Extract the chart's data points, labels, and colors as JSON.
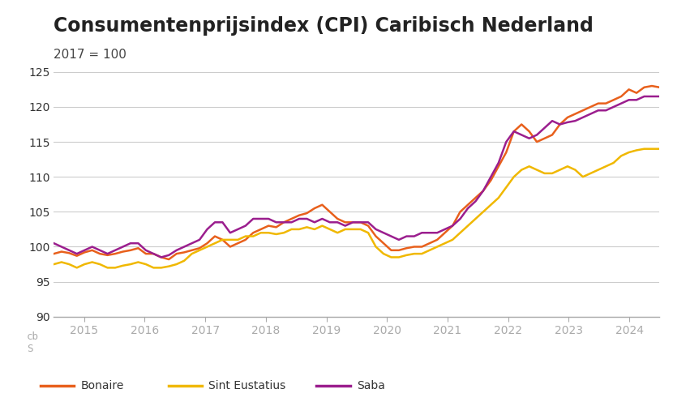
{
  "title": "Consumentenprijsindex (CPI) Caribisch Nederland",
  "subtitle": "2017 = 100",
  "title_fontsize": 17,
  "subtitle_fontsize": 11,
  "background_color": "#ffffff",
  "plot_bg_color": "#ffffff",
  "footer_bg_color": "#e8e8e8",
  "grid_color": "#cccccc",
  "ylim": [
    90,
    126
  ],
  "yticks": [
    90,
    95,
    100,
    105,
    110,
    115,
    120,
    125
  ],
  "series": {
    "bonaire": {
      "label": "Bonaire",
      "color": "#e8601c",
      "linewidth": 1.8,
      "data": [
        99.0,
        99.3,
        99.1,
        98.7,
        99.2,
        99.5,
        99.0,
        98.8,
        99.0,
        99.3,
        99.5,
        99.8,
        99.0,
        99.0,
        98.5,
        98.2,
        99.0,
        99.2,
        99.5,
        99.8,
        100.5,
        101.5,
        101.0,
        100.0,
        100.5,
        101.0,
        102.0,
        102.5,
        103.0,
        102.8,
        103.5,
        104.0,
        104.5,
        104.8,
        105.5,
        106.0,
        105.0,
        104.0,
        103.5,
        103.5,
        103.5,
        103.0,
        101.5,
        100.5,
        99.5,
        99.5,
        99.8,
        100.0,
        100.0,
        100.5,
        101.0,
        102.0,
        103.0,
        105.0,
        106.0,
        107.0,
        108.0,
        109.5,
        111.5,
        113.5,
        116.5,
        117.5,
        116.5,
        115.0,
        115.5,
        116.0,
        117.5,
        118.5,
        119.0,
        119.5,
        120.0,
        120.5,
        120.5,
        121.0,
        121.5,
        122.5,
        122.0,
        122.8,
        123.0,
        122.8
      ]
    },
    "sint_eustatius": {
      "label": "Sint Eustatius",
      "color": "#f0b800",
      "linewidth": 1.8,
      "data": [
        97.5,
        97.8,
        97.5,
        97.0,
        97.5,
        97.8,
        97.5,
        97.0,
        97.0,
        97.3,
        97.5,
        97.8,
        97.5,
        97.0,
        97.0,
        97.2,
        97.5,
        98.0,
        99.0,
        99.5,
        100.0,
        100.5,
        101.0,
        101.0,
        101.0,
        101.5,
        101.5,
        102.0,
        102.0,
        101.8,
        102.0,
        102.5,
        102.5,
        102.8,
        102.5,
        103.0,
        102.5,
        102.0,
        102.5,
        102.5,
        102.5,
        102.0,
        100.0,
        99.0,
        98.5,
        98.5,
        98.8,
        99.0,
        99.0,
        99.5,
        100.0,
        100.5,
        101.0,
        102.0,
        103.0,
        104.0,
        105.0,
        106.0,
        107.0,
        108.5,
        110.0,
        111.0,
        111.5,
        111.0,
        110.5,
        110.5,
        111.0,
        111.5,
        111.0,
        110.0,
        110.5,
        111.0,
        111.5,
        112.0,
        113.0,
        113.5,
        113.8,
        114.0,
        114.0,
        114.0
      ]
    },
    "saba": {
      "label": "Saba",
      "color": "#9b1e8e",
      "linewidth": 1.8,
      "data": [
        100.5,
        100.0,
        99.5,
        99.0,
        99.5,
        100.0,
        99.5,
        99.0,
        99.5,
        100.0,
        100.5,
        100.5,
        99.5,
        99.0,
        98.5,
        98.8,
        99.5,
        100.0,
        100.5,
        101.0,
        102.5,
        103.5,
        103.5,
        102.0,
        102.5,
        103.0,
        104.0,
        104.0,
        104.0,
        103.5,
        103.5,
        103.5,
        104.0,
        104.0,
        103.5,
        104.0,
        103.5,
        103.5,
        103.0,
        103.5,
        103.5,
        103.5,
        102.5,
        102.0,
        101.5,
        101.0,
        101.5,
        101.5,
        102.0,
        102.0,
        102.0,
        102.5,
        103.0,
        104.0,
        105.5,
        106.5,
        108.0,
        110.0,
        112.0,
        115.0,
        116.5,
        116.0,
        115.5,
        116.0,
        117.0,
        118.0,
        117.5,
        117.8,
        118.0,
        118.5,
        119.0,
        119.5,
        119.5,
        120.0,
        120.5,
        121.0,
        121.0,
        121.5,
        121.5,
        121.5
      ]
    }
  },
  "n_points": 80,
  "x_start_year": 2014.5,
  "x_end_year": 2024.5,
  "xtick_years": [
    2015,
    2016,
    2017,
    2018,
    2019,
    2020,
    2021,
    2022,
    2023,
    2024
  ],
  "legend_labels": [
    "Bonaire",
    "Sint Eustatius",
    "Saba"
  ],
  "legend_colors": [
    "#e8601c",
    "#f0b800",
    "#9b1e8e"
  ]
}
